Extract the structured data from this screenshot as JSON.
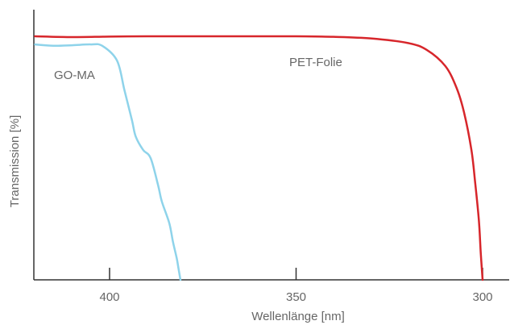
{
  "chart_data": {
    "type": "line",
    "title": "",
    "xlabel": "Wellenlänge [nm]",
    "ylabel": "Transmission [%]",
    "x_reversed": true,
    "xlim": [
      420,
      298
    ],
    "ylim": [
      0,
      100
    ],
    "xticks": [
      {
        "value": 400,
        "label": "400"
      },
      {
        "value": 350,
        "label": "350"
      },
      {
        "value": 300,
        "label": "300"
      }
    ],
    "grid": false,
    "series": [
      {
        "name": "PET-Folie",
        "color": "#d7262b",
        "x": [
          420,
          410,
          400,
          390,
          380,
          370,
          360,
          350,
          340,
          330,
          320,
          315,
          310,
          307,
          305,
          303,
          302,
          301,
          300.5,
          300
        ],
        "y": [
          90,
          89.7,
          89.9,
          90,
          90,
          90,
          90,
          90,
          89.8,
          89.2,
          87.5,
          85,
          79,
          71,
          62,
          48,
          36,
          22,
          10,
          0
        ]
      },
      {
        "name": "GO-MA",
        "color": "#8ed3ea",
        "x": [
          420,
          415,
          410,
          405,
          402,
          398,
          396,
          394,
          393,
          391,
          389,
          387,
          386,
          384,
          383,
          382,
          381.5,
          381
        ],
        "y": [
          87,
          86.5,
          86.7,
          87,
          86.5,
          81,
          70,
          59,
          53,
          48,
          45,
          35,
          29,
          21,
          14,
          8,
          4,
          0
        ]
      }
    ]
  }
}
